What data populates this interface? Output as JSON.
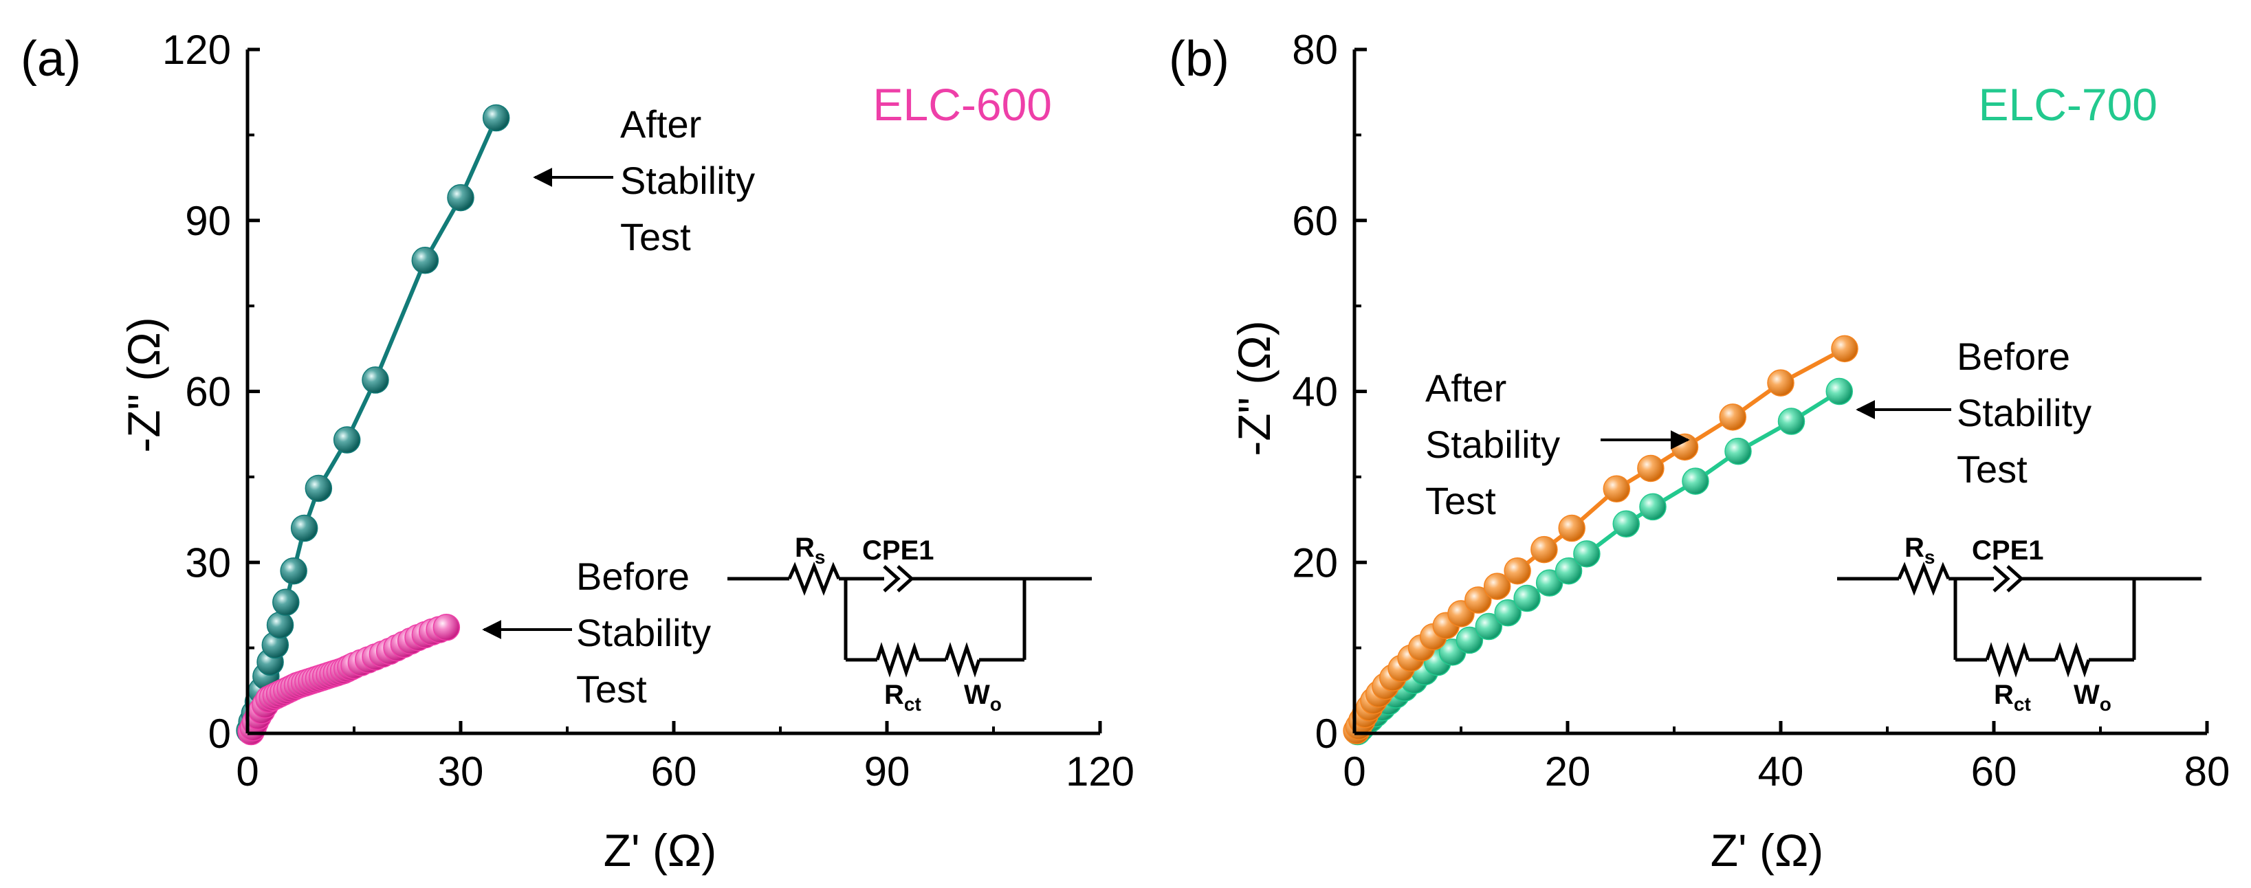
{
  "chart_data": [
    {
      "type": "scatter",
      "panel_label": "(a)",
      "series_title": "ELC-600",
      "series_title_color": "#ee3fa8",
      "xlabel": "Z' (Ω)",
      "ylabel": "-Z\" (Ω)",
      "xlim": [
        0,
        120
      ],
      "ylim": [
        0,
        120
      ],
      "xticks": [
        "0",
        "30",
        "60",
        "90",
        "120"
      ],
      "yticks": [
        "0",
        "30",
        "60",
        "90",
        "120"
      ],
      "series": [
        {
          "name": "After Stability Test",
          "color": "#127b78",
          "line": true,
          "points": [
            [
              0.3,
              0.5
            ],
            [
              0.6,
              2
            ],
            [
              1,
              3.5
            ],
            [
              1.5,
              5.5
            ],
            [
              2,
              7.5
            ],
            [
              2.6,
              10
            ],
            [
              3.2,
              12.5
            ],
            [
              3.9,
              15.5
            ],
            [
              4.6,
              19
            ],
            [
              5.4,
              23
            ],
            [
              6.5,
              28.5
            ],
            [
              8,
              36
            ],
            [
              10,
              43
            ],
            [
              14,
              51.5
            ],
            [
              18,
              62
            ],
            [
              25,
              83
            ],
            [
              30,
              94
            ],
            [
              35,
              108
            ]
          ]
        },
        {
          "name": "Before Stability Test",
          "color": "#ee3fa8",
          "line": false,
          "points": [
            [
              0.5,
              0.3
            ],
            [
              0.8,
              1
            ],
            [
              1.1,
              2
            ],
            [
              1.5,
              3
            ],
            [
              2,
              4
            ],
            [
              2.5,
              5
            ],
            [
              3,
              6
            ],
            [
              3.5,
              6.3
            ],
            [
              4,
              6.6
            ],
            [
              4.5,
              6.9
            ],
            [
              5,
              7.2
            ],
            [
              5.5,
              7.5
            ],
            [
              6,
              7.8
            ],
            [
              6.5,
              8.1
            ],
            [
              7,
              8.4
            ],
            [
              7.5,
              8.6
            ],
            [
              8,
              8.8
            ],
            [
              8.5,
              9
            ],
            [
              9,
              9.2
            ],
            [
              9.5,
              9.4
            ],
            [
              10,
              9.6
            ],
            [
              10.5,
              9.8
            ],
            [
              11,
              10
            ],
            [
              11.5,
              10.2
            ],
            [
              12,
              10.4
            ],
            [
              12.5,
              10.6
            ],
            [
              13,
              10.8
            ],
            [
              13.5,
              11
            ],
            [
              14,
              11.3
            ],
            [
              14.5,
              11.6
            ],
            [
              15,
              11.9
            ],
            [
              16,
              12.4
            ],
            [
              17,
              12.9
            ],
            [
              18,
              13.4
            ],
            [
              19,
              13.9
            ],
            [
              20,
              14.4
            ],
            [
              21,
              15
            ],
            [
              22,
              15.6
            ],
            [
              23,
              16.2
            ],
            [
              24,
              16.8
            ],
            [
              25,
              17.3
            ],
            [
              26,
              17.8
            ],
            [
              27,
              18.2
            ],
            [
              28,
              18.6
            ]
          ]
        }
      ],
      "annotations": {
        "after": [
          "After",
          "Stability",
          "Test"
        ],
        "before": [
          "Before",
          "Stability",
          "Test"
        ]
      },
      "circuit": {
        "rs": "R",
        "rs_sub": "s",
        "cpe": "CPE1",
        "rct": "R",
        "rct_sub": "ct",
        "wo": "W",
        "wo_sub": "o"
      }
    },
    {
      "type": "scatter",
      "panel_label": "(b)",
      "series_title": "ELC-700",
      "series_title_color": "#22c98e",
      "xlabel": "Z' (Ω)",
      "ylabel": "-Z\" (Ω)",
      "xlim": [
        0,
        80
      ],
      "ylim": [
        0,
        80
      ],
      "xticks": [
        "0",
        "20",
        "40",
        "60",
        "80"
      ],
      "yticks": [
        "0",
        "20",
        "40",
        "60",
        "80"
      ],
      "series": [
        {
          "name": "Before Stability Test",
          "color": "#22c98e",
          "line": true,
          "points": [
            [
              0.3,
              0.2
            ],
            [
              0.6,
              0.6
            ],
            [
              1,
              1.1
            ],
            [
              1.5,
              1.7
            ],
            [
              2,
              2.3
            ],
            [
              2.6,
              3
            ],
            [
              3.2,
              3.7
            ],
            [
              3.9,
              4.5
            ],
            [
              4.7,
              5.3
            ],
            [
              5.6,
              6.2
            ],
            [
              6.6,
              7.2
            ],
            [
              7.8,
              8.3
            ],
            [
              9.2,
              9.5
            ],
            [
              10.8,
              10.9
            ],
            [
              12.6,
              12.5
            ],
            [
              14.4,
              14.1
            ],
            [
              16.2,
              15.8
            ],
            [
              18.3,
              17.6
            ],
            [
              20.1,
              19
            ],
            [
              21.8,
              21
            ],
            [
              25.5,
              24.5
            ],
            [
              28,
              26.5
            ],
            [
              32,
              29.5
            ],
            [
              36,
              33
            ],
            [
              41,
              36.5
            ],
            [
              45.5,
              40
            ]
          ]
        },
        {
          "name": "After Stability Test",
          "color": "#f5841f",
          "line": true,
          "points": [
            [
              0.2,
              0.3
            ],
            [
              0.4,
              0.8
            ],
            [
              0.7,
              1.5
            ],
            [
              1,
              2.2
            ],
            [
              1.4,
              3
            ],
            [
              1.8,
              3.8
            ],
            [
              2.3,
              4.6
            ],
            [
              2.9,
              5.5
            ],
            [
              3.6,
              6.5
            ],
            [
              4.4,
              7.6
            ],
            [
              5.3,
              8.8
            ],
            [
              6.3,
              10
            ],
            [
              7.4,
              11.3
            ],
            [
              8.6,
              12.6
            ],
            [
              10,
              14
            ],
            [
              11.6,
              15.6
            ],
            [
              13.4,
              17.2
            ],
            [
              15.3,
              19
            ],
            [
              17.8,
              21.5
            ],
            [
              20.4,
              24
            ],
            [
              24.6,
              28.6
            ],
            [
              27.8,
              31
            ],
            [
              31,
              33.5
            ],
            [
              35.5,
              37
            ],
            [
              40,
              41
            ],
            [
              46,
              45
            ]
          ]
        }
      ],
      "annotations": {
        "after": [
          "After",
          "Stability",
          "Test"
        ],
        "before": [
          "Before",
          "Stability",
          "Test"
        ]
      },
      "circuit": {
        "rs": "R",
        "rs_sub": "s",
        "cpe": "CPE1",
        "rct": "R",
        "rct_sub": "ct",
        "wo": "W",
        "wo_sub": "o"
      }
    }
  ]
}
